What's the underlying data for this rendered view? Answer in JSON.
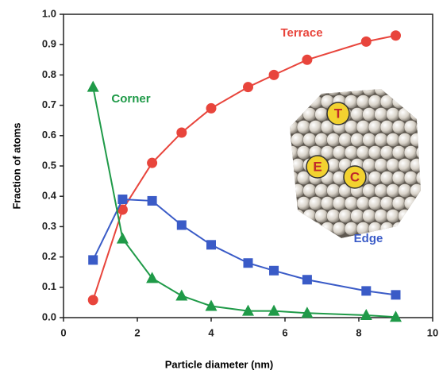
{
  "chart_data": {
    "type": "line",
    "x_label": "Particle diameter (nm)",
    "y_label": "Fraction of atoms",
    "x": [
      0.8,
      1.6,
      2.4,
      3.2,
      4.0,
      5.0,
      5.7,
      6.6,
      8.2,
      9.0
    ],
    "series": [
      {
        "name": "Terrace",
        "color": "#e8453c",
        "marker": "circle",
        "values": [
          0.058,
          0.356,
          0.51,
          0.61,
          0.69,
          0.76,
          0.8,
          0.85,
          0.91,
          0.93
        ]
      },
      {
        "name": "Edge",
        "color": "#3a5bc7",
        "marker": "square",
        "values": [
          0.19,
          0.39,
          0.385,
          0.305,
          0.24,
          0.18,
          0.155,
          0.125,
          0.088,
          0.075
        ]
      },
      {
        "name": "Corner",
        "color": "#1f9a48",
        "marker": "triangle",
        "values": [
          0.76,
          0.26,
          0.13,
          0.072,
          0.038,
          0.022,
          0.022,
          0.015,
          0.008,
          0.002
        ]
      }
    ],
    "xlim": [
      0,
      10
    ],
    "xticks": [
      0,
      2,
      4,
      6,
      8,
      10
    ],
    "ylim": [
      0,
      1
    ],
    "yticks": [
      {
        "value": 0,
        "label": "0.0"
      },
      0.1,
      0.2,
      0.3,
      0.4,
      0.5,
      0.6,
      0.7,
      0.8,
      0.9,
      {
        "value": 1,
        "label": "1.0"
      }
    ],
    "inset_labels": [
      "T",
      "E",
      "C"
    ]
  }
}
